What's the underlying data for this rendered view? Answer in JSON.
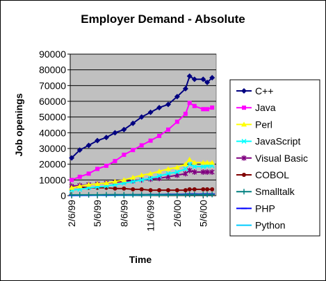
{
  "chart_data": {
    "type": "line",
    "title": "Employer Demand - Absolute",
    "xlabel": "Time",
    "ylabel": "Job openings",
    "x_tick_labels": [
      "2/6/99",
      "5/6/99",
      "8/6/99",
      "11/6/99",
      "2/6/00",
      "5/6/00"
    ],
    "x_ticks": [
      "1999-02-06",
      "1999-05-06",
      "1999-08-06",
      "1999-11-06",
      "2000-02-06",
      "2000-05-06"
    ],
    "x_range": [
      "1999-02-01",
      "2000-06-20"
    ],
    "ylim": [
      0,
      90000
    ],
    "y_ticks": [
      0,
      10000,
      20000,
      30000,
      40000,
      50000,
      60000,
      70000,
      80000,
      90000
    ],
    "grid": "horizontal",
    "plot_background": "#c0c0c0",
    "legend_position": "right",
    "x": [
      "1999-02-06",
      "1999-03-06",
      "1999-04-06",
      "1999-05-06",
      "1999-06-06",
      "1999-07-06",
      "1999-08-06",
      "1999-09-06",
      "1999-10-06",
      "1999-11-06",
      "1999-12-06",
      "2000-01-06",
      "2000-02-06",
      "2000-03-06",
      "2000-03-20",
      "2000-04-06",
      "2000-05-06",
      "2000-05-20",
      "2000-06-06"
    ],
    "series": [
      {
        "name": "C++",
        "color": "#000080",
        "marker": "diamond",
        "values": [
          24000,
          29000,
          32000,
          35000,
          37000,
          40000,
          42000,
          46000,
          50000,
          53000,
          56000,
          58000,
          63000,
          68000,
          76000,
          74000,
          74000,
          72000,
          75000
        ]
      },
      {
        "name": "Java",
        "color": "#ff00ff",
        "marker": "square",
        "values": [
          10000,
          12000,
          14000,
          17000,
          19000,
          22000,
          26000,
          29000,
          32000,
          35000,
          38000,
          42000,
          47000,
          52000,
          59000,
          57000,
          55000,
          55000,
          56000
        ]
      },
      {
        "name": "Perl",
        "color": "#ffff00",
        "marker": "triangle",
        "values": [
          5000,
          6000,
          7000,
          7500,
          8000,
          9000,
          10000,
          11500,
          13000,
          14000,
          15500,
          17000,
          18000,
          20000,
          23000,
          21000,
          21000,
          21000,
          21000
        ]
      },
      {
        "name": "JavaScript",
        "color": "#00ffff",
        "marker": "x",
        "values": [
          3500,
          4000,
          5000,
          5500,
          6000,
          7000,
          8000,
          9000,
          10000,
          11000,
          12500,
          14000,
          15000,
          17000,
          20000,
          18500,
          18500,
          19000,
          19000
        ]
      },
      {
        "name": "Visual Basic",
        "color": "#800080",
        "marker": "star",
        "values": [
          6000,
          6500,
          7000,
          7500,
          8000,
          8500,
          9000,
          9500,
          10000,
          10500,
          11000,
          12000,
          13000,
          14000,
          16000,
          15000,
          15000,
          15000,
          15000
        ]
      },
      {
        "name": "COBOL",
        "color": "#800000",
        "marker": "circle",
        "values": [
          5500,
          5500,
          5000,
          5000,
          5000,
          4500,
          4500,
          4000,
          4000,
          3500,
          3500,
          3500,
          3500,
          3500,
          4000,
          4000,
          4000,
          4000,
          4000
        ]
      },
      {
        "name": "Smalltalk",
        "color": "#008080",
        "marker": "plus",
        "values": [
          500,
          500,
          500,
          500,
          600,
          600,
          600,
          600,
          600,
          600,
          600,
          600,
          600,
          600,
          700,
          700,
          700,
          700,
          700
        ]
      },
      {
        "name": "PHP",
        "color": "#0000ff",
        "marker": "dash",
        "values": [
          200,
          300,
          300,
          400,
          400,
          500,
          500,
          600,
          600,
          700,
          700,
          800,
          800,
          900,
          1000,
          1000,
          1000,
          1000,
          1000
        ]
      },
      {
        "name": "Python",
        "color": "#00ccff",
        "marker": "none",
        "values": [
          100,
          150,
          200,
          200,
          250,
          300,
          300,
          350,
          400,
          400,
          450,
          500,
          500,
          550,
          600,
          600,
          600,
          600,
          600
        ]
      }
    ]
  }
}
